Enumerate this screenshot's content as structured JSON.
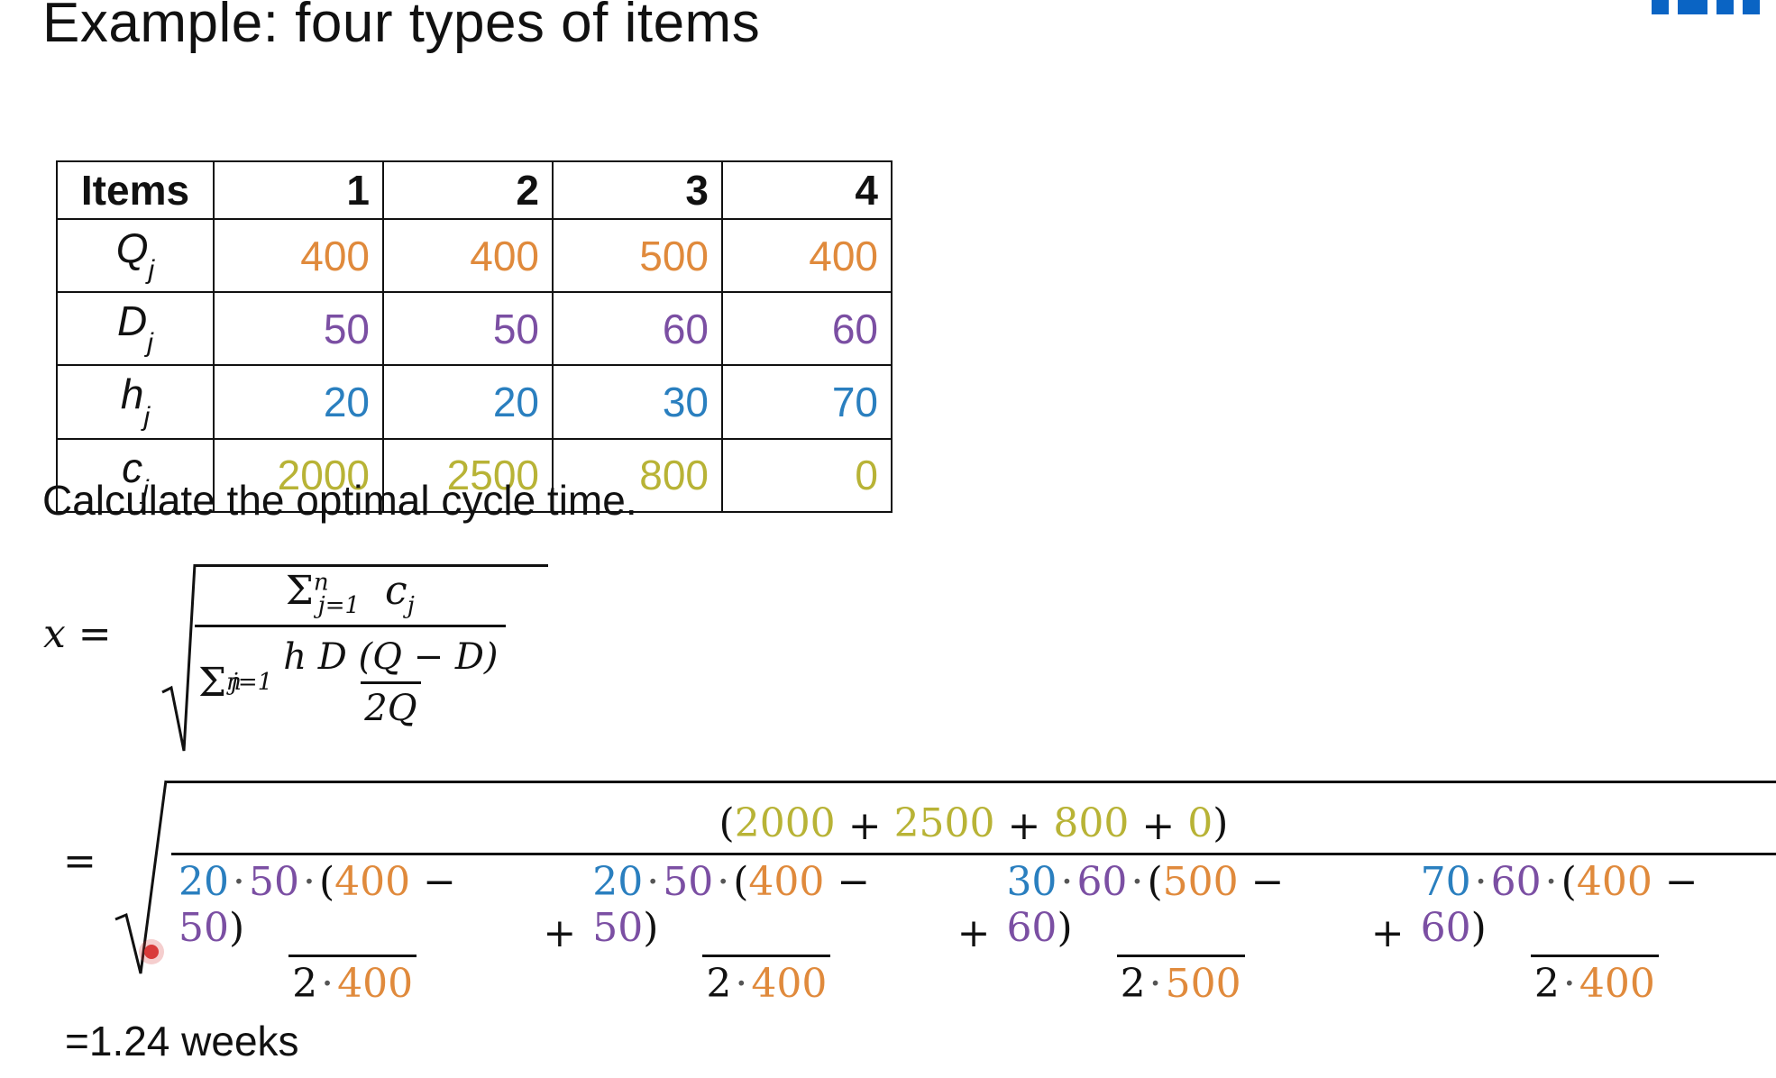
{
  "title": "Example: four types of items",
  "table": {
    "header": [
      "Items",
      "1",
      "2",
      "3",
      "4"
    ],
    "rows": [
      {
        "label": "Q",
        "sub": "j",
        "values": [
          "400",
          "400",
          "500",
          "400"
        ],
        "color": "#e08a3c"
      },
      {
        "label": "D",
        "sub": "j",
        "values": [
          "50",
          "50",
          "60",
          "60"
        ],
        "color": "#7b4fa3"
      },
      {
        "label": "h",
        "sub": "j",
        "values": [
          "20",
          "20",
          "30",
          "70"
        ],
        "color": "#2a7fbf"
      },
      {
        "label": "c",
        "sub": "j",
        "values": [
          "2000",
          "2500",
          "800",
          "0"
        ],
        "color": "#b8b336"
      }
    ]
  },
  "prompt": "Calculate the optimal cycle time.",
  "formula": {
    "lhs": "x =",
    "numerator": "c",
    "denominator": "h D (Q − D)",
    "inner_den": "2Q"
  },
  "substitution": {
    "eq": "=",
    "numerator": [
      "(",
      "2000",
      "+",
      "2500",
      "+",
      "800",
      "+",
      "0",
      ")"
    ],
    "terms": [
      {
        "h": "20",
        "D": "50",
        "Q": "400",
        "D2": "50",
        "two": "2",
        "Qd": "400"
      },
      {
        "h": "20",
        "D": "50",
        "Q": "400",
        "D2": "50",
        "two": "2",
        "Qd": "400"
      },
      {
        "h": "30",
        "D": "60",
        "Q": "500",
        "D2": "60",
        "two": "2",
        "Qd": "500"
      },
      {
        "h": "70",
        "D": "60",
        "Q": "400",
        "D2": "60",
        "two": "2",
        "Qd": "400"
      }
    ]
  },
  "result": "=1.24 weeks",
  "colors": {
    "Q": "#e08a3c",
    "D": "#7b4fa3",
    "h": "#2a7fbf",
    "c": "#b8b336",
    "logo": "#0a64c4"
  }
}
